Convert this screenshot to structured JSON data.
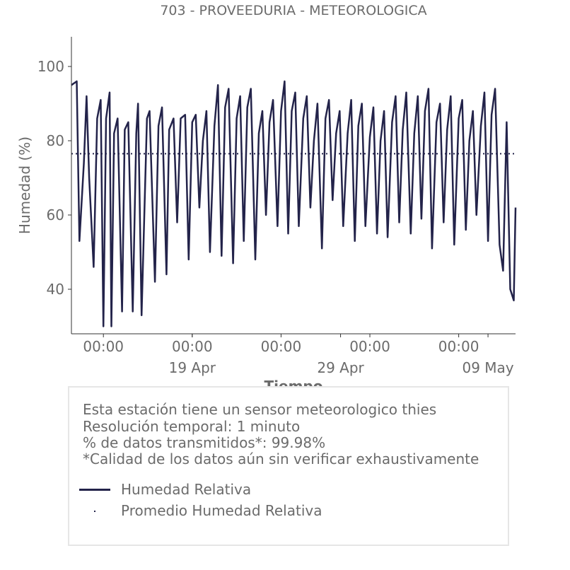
{
  "chart_data": {
    "type": "line",
    "title": "703 - PROVEEDURIA - METEOROLOGICA",
    "xlabel": "Tiempo",
    "ylabel": "Humedad (%)",
    "ylim": [
      28,
      108
    ],
    "yticks": [
      40,
      60,
      80,
      100
    ],
    "xlim": [
      -0.36,
      4.64
    ],
    "xticks": [
      {
        "pos": 0,
        "label": "00:00"
      },
      {
        "pos": 1,
        "label": "00:00"
      },
      {
        "pos": 2,
        "label": "00:00"
      },
      {
        "pos": 3,
        "label": "00:00"
      },
      {
        "pos": 4,
        "label": "00:00"
      }
    ],
    "xticks_major": [
      {
        "pos": 1,
        "label": "19 Apr"
      },
      {
        "pos": 2.67,
        "label": "29 Apr"
      },
      {
        "pos": 4.33,
        "label": "09 May"
      }
    ],
    "grid": false,
    "series": [
      {
        "name": "Humedad Relativa",
        "color": "#23234a",
        "style": "solid",
        "x": [
          -0.36,
          -0.3,
          -0.27,
          -0.22,
          -0.19,
          -0.16,
          -0.11,
          -0.07,
          -0.03,
          0.0,
          0.03,
          0.07,
          0.09,
          0.12,
          0.16,
          0.21,
          0.24,
          0.28,
          0.33,
          0.37,
          0.39,
          0.43,
          0.49,
          0.52,
          0.58,
          0.62,
          0.66,
          0.71,
          0.74,
          0.79,
          0.83,
          0.87,
          0.92,
          0.96,
          1.0,
          1.04,
          1.08,
          1.12,
          1.16,
          1.2,
          1.25,
          1.29,
          1.33,
          1.37,
          1.41,
          1.46,
          1.5,
          1.54,
          1.58,
          1.62,
          1.66,
          1.71,
          1.75,
          1.79,
          1.83,
          1.87,
          1.91,
          1.96,
          2.0,
          2.04,
          2.08,
          2.12,
          2.16,
          2.2,
          2.25,
          2.29,
          2.33,
          2.37,
          2.41,
          2.46,
          2.5,
          2.54,
          2.58,
          2.62,
          2.66,
          2.7,
          2.75,
          2.79,
          2.83,
          2.87,
          2.91,
          2.95,
          3.0,
          3.04,
          3.08,
          3.12,
          3.16,
          3.2,
          3.25,
          3.29,
          3.33,
          3.37,
          3.41,
          3.46,
          3.5,
          3.54,
          3.58,
          3.62,
          3.66,
          3.7,
          3.75,
          3.79,
          3.83,
          3.87,
          3.91,
          3.95,
          4.0,
          4.04,
          4.08,
          4.12,
          4.16,
          4.2,
          4.25,
          4.29,
          4.33,
          4.37,
          4.41,
          4.46,
          4.5,
          4.54,
          4.58,
          4.62,
          4.64
        ],
        "y": [
          95,
          96,
          53,
          74,
          92,
          70,
          46,
          86,
          91,
          30,
          86,
          93,
          30,
          82,
          86,
          34,
          83,
          85,
          34,
          82,
          90,
          33,
          86,
          88,
          42,
          84,
          89,
          44,
          83,
          86,
          58,
          86,
          87,
          48,
          85,
          87,
          62,
          80,
          88,
          50,
          84,
          95,
          49,
          89,
          94,
          47,
          86,
          92,
          53,
          89,
          94,
          48,
          82,
          88,
          60,
          85,
          91,
          57,
          88,
          96,
          55,
          88,
          93,
          57,
          86,
          92,
          62,
          80,
          90,
          51,
          86,
          91,
          64,
          82,
          88,
          57,
          82,
          91,
          53,
          84,
          90,
          57,
          81,
          89,
          55,
          80,
          88,
          54,
          85,
          92,
          58,
          83,
          93,
          55,
          82,
          92,
          59,
          88,
          94,
          51,
          85,
          90,
          58,
          83,
          92,
          52,
          86,
          91,
          56,
          80,
          88,
          60,
          84,
          93,
          53,
          87,
          94,
          52,
          45,
          85,
          40,
          37,
          62
        ]
      },
      {
        "name": "Promedio Humedad Relativa",
        "color": "#23234a",
        "style": "dotted",
        "value": 76.5
      }
    ]
  },
  "info": {
    "lines": [
      "Esta estación tiene un sensor meteorologico thies",
      "Resolución temporal: 1 minuto",
      "% de datos transmitidos*: 99.98%",
      "*Calidad de los datos aún sin verificar exhaustivamente"
    ]
  },
  "legend": {
    "items": [
      {
        "label": "Humedad Relativa"
      },
      {
        "label": "Promedio Humedad Relativa"
      }
    ]
  }
}
